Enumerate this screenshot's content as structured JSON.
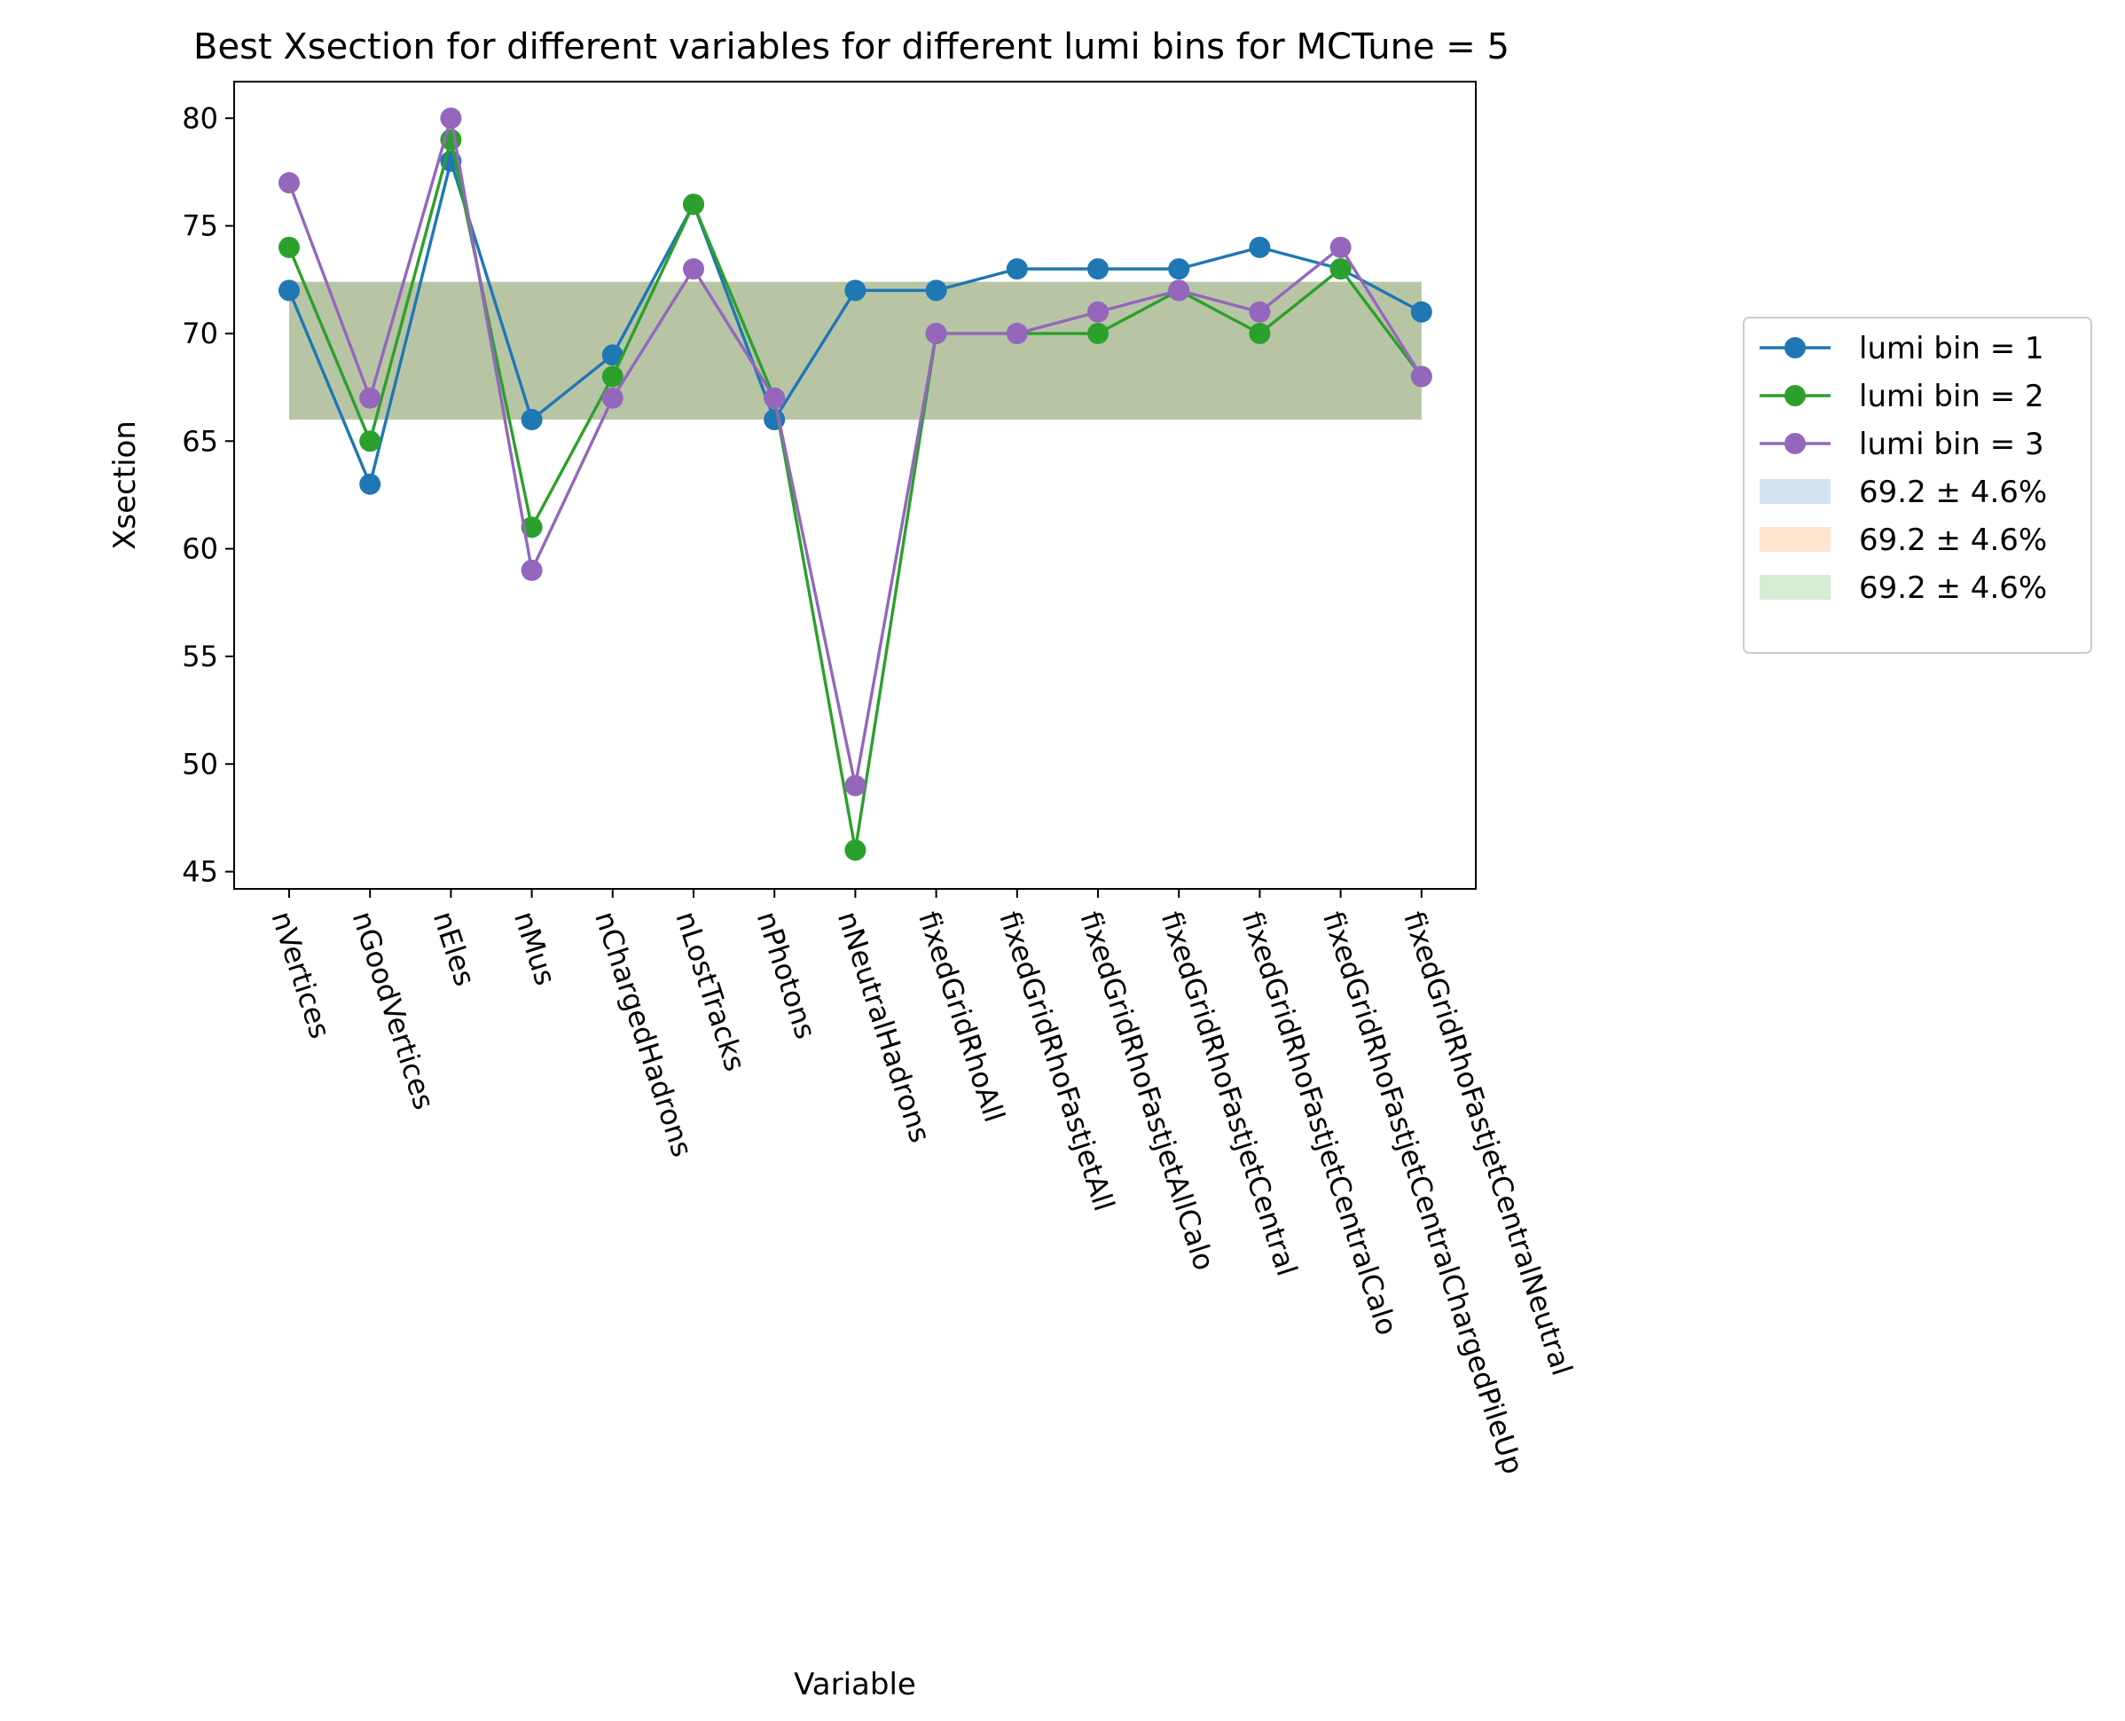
{
  "chart_data": {
    "type": "line",
    "title": "Best Xsection for different variables for different lumi bins for MCTune = 5",
    "xlabel": "Variable",
    "ylabel": "Xsection",
    "ylim": [
      44.2,
      81.7
    ],
    "yticks": [
      45,
      50,
      55,
      60,
      65,
      70,
      75,
      80
    ],
    "legend_position": "outside-right",
    "grid": false,
    "categories": [
      "nVertices",
      "nGoodVertices",
      "nEles",
      "nMus",
      "nChargedHadrons",
      "nLostTracks",
      "nPhotons",
      "nNeutralHadrons",
      "fixedGridRhoAll",
      "fixedGridRhoFastjetAll",
      "fixedGridRhoFastjetAllCalo",
      "fixedGridRhoFastjetCentral",
      "fixedGridRhoFastjetCentralCalo",
      "fixedGridRhoFastjetCentralChargedPileUp",
      "fixedGridRhoFastjetCentralNeutral"
    ],
    "series": [
      {
        "name": "lumi bin = 1",
        "color": "#1f77b4",
        "values": [
          72,
          63,
          78,
          66,
          69,
          76,
          66,
          72,
          72,
          73,
          73,
          73,
          74,
          73,
          71
        ]
      },
      {
        "name": "lumi bin = 2",
        "color": "#2ca02c",
        "values": [
          74,
          65,
          79,
          61,
          68,
          76,
          67,
          46,
          70,
          70,
          70,
          72,
          70,
          73,
          68
        ]
      },
      {
        "name": "lumi bin = 3",
        "color": "#9467bd",
        "values": [
          77,
          67,
          80,
          59,
          67,
          73,
          67,
          49,
          70,
          70,
          71,
          72,
          71,
          74,
          68
        ]
      }
    ],
    "bands": [
      {
        "name": "69.2 ± 4.6%",
        "color": "#1f77b4",
        "low": 66.0,
        "high": 72.4
      },
      {
        "name": "69.2 ± 4.6%",
        "color": "#ff7f0e",
        "low": 66.0,
        "high": 72.4
      },
      {
        "name": "69.2 ± 4.6%",
        "color": "#2ca02c",
        "low": 66.0,
        "high": 72.4
      }
    ]
  }
}
